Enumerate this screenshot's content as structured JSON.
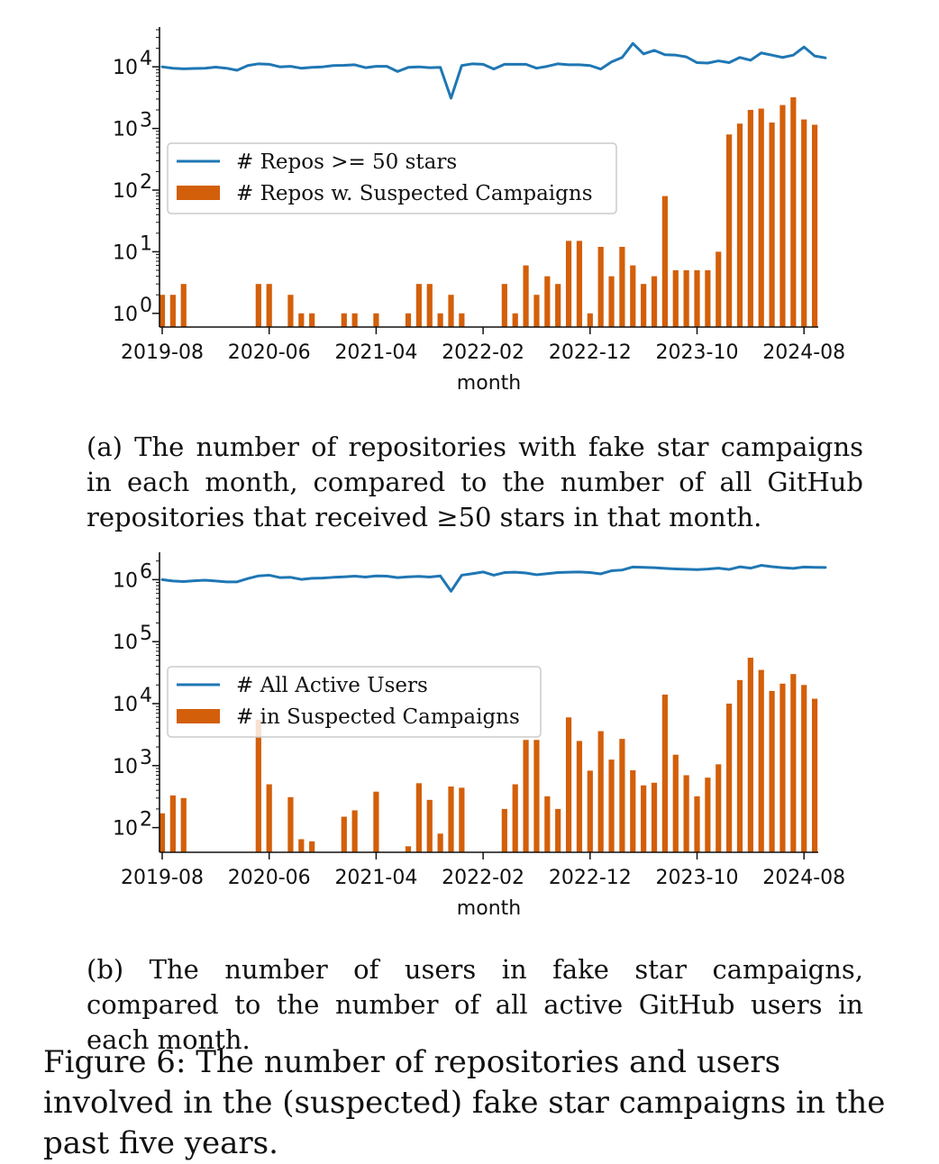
{
  "chart_data": [
    {
      "id": "a",
      "type": "bar+line",
      "yscale": "log",
      "ylim": [
        0.6,
        40000
      ],
      "yticks": [
        {
          "value": 1,
          "base": "10",
          "exp": "0"
        },
        {
          "value": 10,
          "base": "10",
          "exp": "1"
        },
        {
          "value": 100,
          "base": "10",
          "exp": "2"
        },
        {
          "value": 1000,
          "base": "10",
          "exp": "3"
        },
        {
          "value": 10000,
          "base": "10",
          "exp": "4"
        }
      ],
      "xticks": [
        {
          "index": 0,
          "label": "2019-08"
        },
        {
          "index": 10,
          "label": "2020-06"
        },
        {
          "index": 20,
          "label": "2021-04"
        },
        {
          "index": 30,
          "label": "2022-02"
        },
        {
          "index": 40,
          "label": "2022-12"
        },
        {
          "index": 50,
          "label": "2023-10"
        },
        {
          "index": 60,
          "label": "2024-08"
        }
      ],
      "xlabel": "month",
      "legend_position": "center-left",
      "series": [
        {
          "name": "# Repos >= 50 stars",
          "kind": "line",
          "color": "#1f77b4",
          "values": [
            10000,
            9500,
            9300,
            9400,
            9500,
            9900,
            9500,
            8800,
            10500,
            11200,
            11000,
            10000,
            10200,
            9500,
            9800,
            10000,
            10500,
            10600,
            10800,
            9700,
            10200,
            10200,
            8400,
            9800,
            10000,
            9700,
            9800,
            3100,
            10500,
            11200,
            11000,
            9200,
            11000,
            11000,
            11000,
            9500,
            10200,
            11200,
            10800,
            10800,
            10500,
            9200,
            12000,
            14200,
            24000,
            16200,
            18500,
            15700,
            15500,
            14500,
            11700,
            11500,
            12500,
            11700,
            14200,
            12800,
            16800,
            15500,
            14200,
            15500,
            21000,
            15000,
            14000
          ]
        },
        {
          "name": "# Repos w. Suspected Campaigns",
          "kind": "bar",
          "color": "#d35f0a",
          "values": [
            2,
            2,
            3,
            0,
            0,
            0,
            0,
            0,
            0,
            3,
            3,
            0,
            2,
            1,
            1,
            0,
            0,
            1,
            1,
            0,
            1,
            0,
            0,
            1,
            3,
            3,
            1,
            2,
            1,
            0,
            0,
            0,
            3,
            1,
            6,
            2,
            4,
            3,
            15,
            15,
            1,
            12,
            4,
            12,
            6,
            3,
            4,
            80,
            5,
            5,
            5,
            5,
            10,
            800,
            1200,
            2000,
            2100,
            1250,
            2400,
            3200,
            1400,
            1150
          ]
        }
      ]
    },
    {
      "id": "b",
      "type": "bar+line",
      "yscale": "log",
      "ylim": [
        40,
        2500000
      ],
      "yticks": [
        {
          "value": 100,
          "base": "10",
          "exp": "2"
        },
        {
          "value": 1000,
          "base": "10",
          "exp": "3"
        },
        {
          "value": 10000,
          "base": "10",
          "exp": "4"
        },
        {
          "value": 100000,
          "base": "10",
          "exp": "5"
        },
        {
          "value": 1000000,
          "base": "10",
          "exp": "6"
        }
      ],
      "xticks": [
        {
          "index": 0,
          "label": "2019-08"
        },
        {
          "index": 10,
          "label": "2020-06"
        },
        {
          "index": 20,
          "label": "2021-04"
        },
        {
          "index": 30,
          "label": "2022-02"
        },
        {
          "index": 40,
          "label": "2022-12"
        },
        {
          "index": 50,
          "label": "2023-10"
        },
        {
          "index": 60,
          "label": "2024-08"
        }
      ],
      "xlabel": "month",
      "legend_position": "center-left",
      "series": [
        {
          "name": "# All Active Users",
          "kind": "line",
          "color": "#1f77b4",
          "values": [
            1000000,
            950000,
            930000,
            960000,
            980000,
            950000,
            920000,
            920000,
            1040000,
            1150000,
            1180000,
            1080000,
            1090000,
            1010000,
            1050000,
            1060000,
            1090000,
            1110000,
            1140000,
            1100000,
            1150000,
            1140000,
            1080000,
            1110000,
            1130000,
            1100000,
            1150000,
            650000,
            1180000,
            1250000,
            1330000,
            1180000,
            1300000,
            1320000,
            1280000,
            1200000,
            1250000,
            1300000,
            1320000,
            1330000,
            1300000,
            1240000,
            1390000,
            1430000,
            1600000,
            1580000,
            1560000,
            1520000,
            1490000,
            1470000,
            1450000,
            1480000,
            1530000,
            1460000,
            1610000,
            1530000,
            1700000,
            1620000,
            1560000,
            1520000,
            1600000,
            1580000,
            1570000
          ]
        },
        {
          "name": "# in Suspected Campaigns",
          "kind": "bar",
          "color": "#d35f0a",
          "values": [
            170,
            330,
            300,
            0,
            0,
            0,
            0,
            0,
            0,
            5500,
            500,
            0,
            310,
            65,
            60,
            0,
            0,
            150,
            190,
            0,
            380,
            0,
            0,
            50,
            520,
            280,
            80,
            460,
            440,
            0,
            0,
            0,
            200,
            500,
            2600,
            2600,
            320,
            200,
            6000,
            2500,
            830,
            3600,
            1250,
            2700,
            840,
            480,
            530,
            14000,
            1500,
            700,
            320,
            640,
            1050,
            10000,
            24000,
            55000,
            35000,
            16000,
            21000,
            30000,
            20000,
            12000
          ]
        }
      ]
    }
  ],
  "captions": {
    "a_prefix": "(a) The number of repositories with fake star campaigns in each month, compared to the number of all GitHub repositories that received ",
    "a_symbol": "≥",
    "a_suffix": "50 stars in that month.",
    "b": "(b) The number of users in fake star campaigns, compared to the number of all active GitHub users in each month.",
    "figure": "Figure 6: The number of repositories and users involved in the (suspected) fake star campaigns in the past five years."
  }
}
